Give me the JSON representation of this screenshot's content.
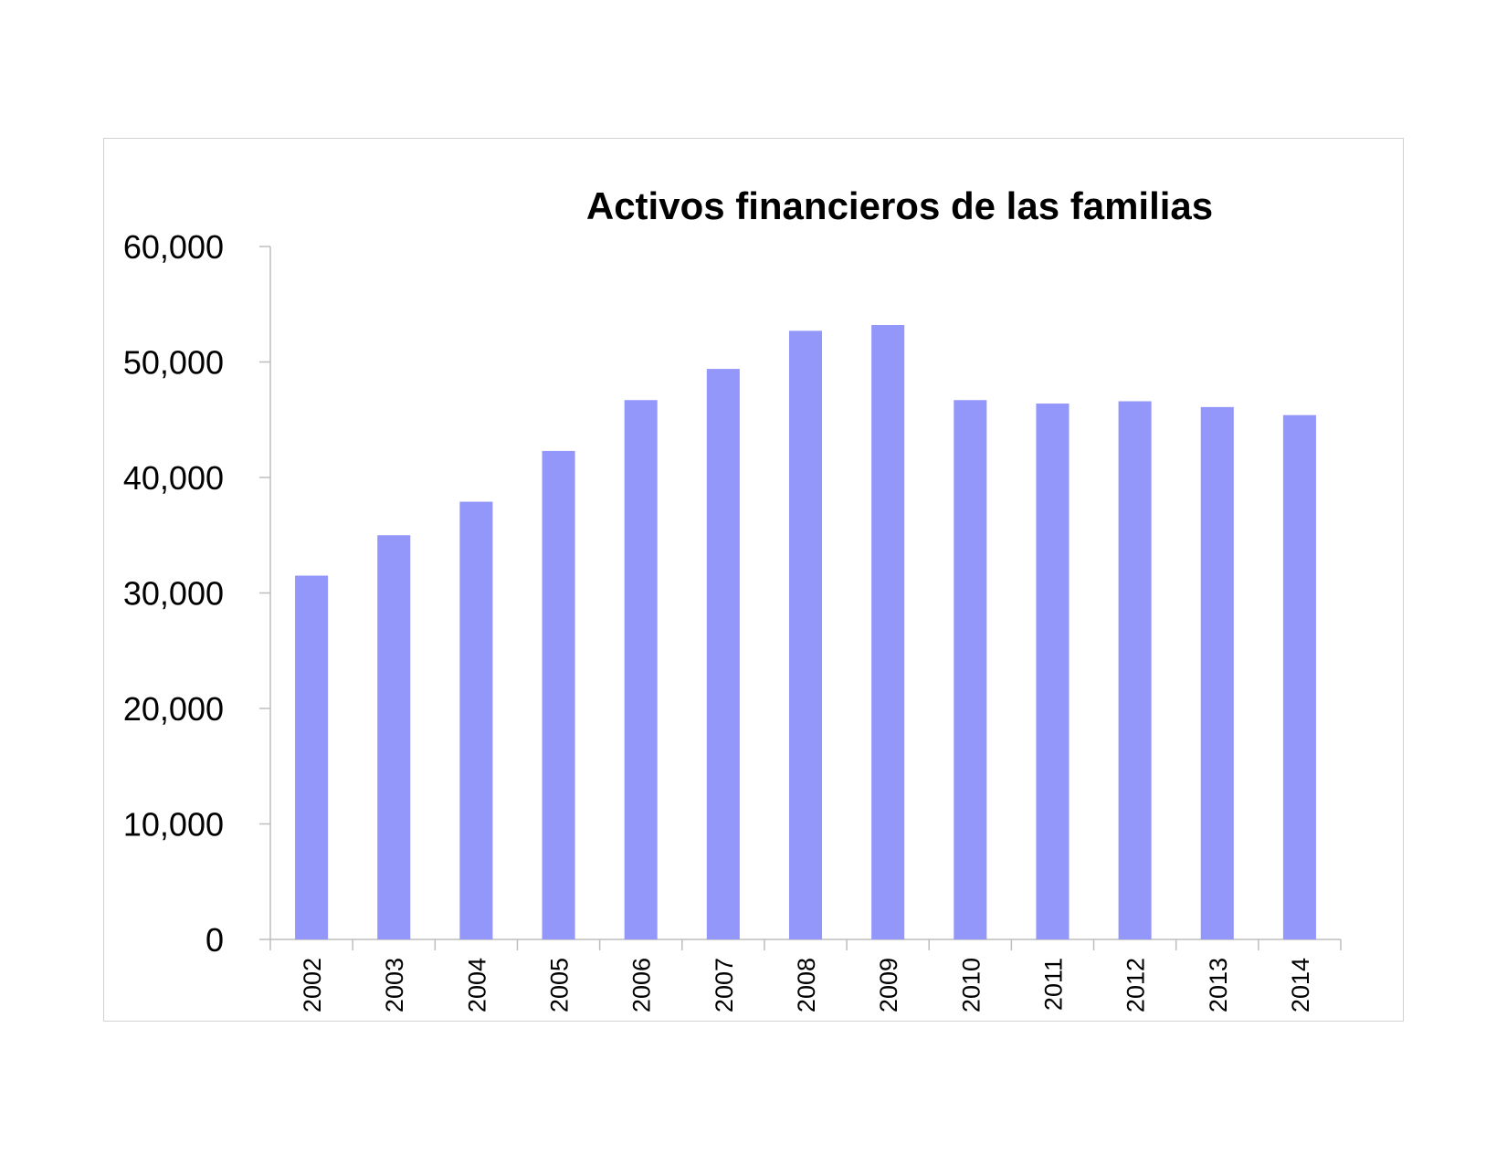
{
  "chart_data": {
    "type": "bar",
    "title": "Activos financieros de las familias",
    "xlabel": "",
    "ylabel": "",
    "categories": [
      "2002",
      "2003",
      "2004",
      "2005",
      "2006",
      "2007",
      "2008",
      "2009",
      "2010",
      "2011",
      "2012",
      "2013",
      "2014"
    ],
    "values": [
      31500,
      35000,
      37900,
      42300,
      46700,
      49400,
      52700,
      53200,
      46700,
      46400,
      46600,
      46100,
      45400
    ],
    "ylim": [
      0,
      60000
    ],
    "yticks": [
      0,
      10000,
      20000,
      30000,
      40000,
      50000,
      60000
    ],
    "ytick_labels": [
      "0",
      "10,000",
      "20,000",
      "30,000",
      "40,000",
      "50,000",
      "60,000"
    ],
    "grid": false,
    "legend": "none",
    "bar_color": "#9497fa",
    "axis_color": "#bdbdbd"
  }
}
